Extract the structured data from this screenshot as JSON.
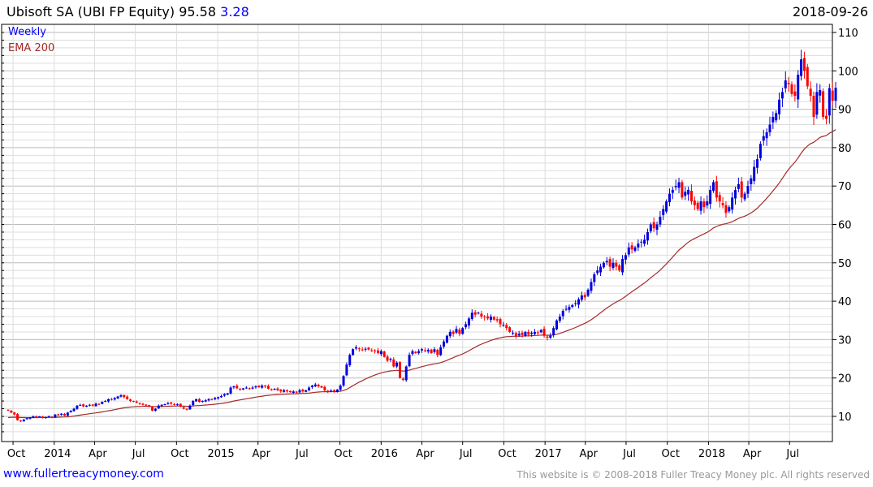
{
  "header": {
    "name": "Ubisoft SA (UBI FP Equity)",
    "price": "95.58",
    "change": "3.28",
    "date": "2018-09-26"
  },
  "legend": {
    "period": "Weekly",
    "ema": "EMA 200"
  },
  "footer": {
    "site": "www.fullertreacymoney.com",
    "copyright": "This website is © 2008-2018 Fuller Treacy Money plc. All rights reserved"
  },
  "colors": {
    "up": "#0000dd",
    "down": "#ff0000",
    "ema": "#a52a2a",
    "grid": "#dddddd",
    "gridMajor": "#bbbbbb"
  },
  "chart_data": {
    "type": "candlestick",
    "title": "Ubisoft SA (UBI FP Equity)",
    "frequency": "weekly",
    "start_date": "2013-09-20",
    "ylim": [
      4,
      112
    ],
    "y_ticks": [
      10,
      20,
      30,
      40,
      50,
      60,
      70,
      80,
      90,
      100,
      110
    ],
    "x_ticks": [
      {
        "label": "Oct",
        "date": "2013-10-01"
      },
      {
        "label": "2014",
        "date": "2014-01-01"
      },
      {
        "label": "Apr",
        "date": "2014-04-01"
      },
      {
        "label": "Jul",
        "date": "2014-07-01"
      },
      {
        "label": "Oct",
        "date": "2014-10-01"
      },
      {
        "label": "2015",
        "date": "2015-01-01"
      },
      {
        "label": "Apr",
        "date": "2015-04-01"
      },
      {
        "label": "Jul",
        "date": "2015-07-01"
      },
      {
        "label": "Oct",
        "date": "2015-10-01"
      },
      {
        "label": "2016",
        "date": "2016-01-01"
      },
      {
        "label": "Apr",
        "date": "2016-04-01"
      },
      {
        "label": "Jul",
        "date": "2016-07-01"
      },
      {
        "label": "Oct",
        "date": "2016-10-01"
      },
      {
        "label": "2017",
        "date": "2017-01-01"
      },
      {
        "label": "Apr",
        "date": "2017-04-01"
      },
      {
        "label": "Jul",
        "date": "2017-07-01"
      },
      {
        "label": "Oct",
        "date": "2017-10-01"
      },
      {
        "label": "2018",
        "date": "2018-01-01"
      },
      {
        "label": "Apr",
        "date": "2018-04-01"
      },
      {
        "label": "Jul",
        "date": "2018-07-01"
      }
    ],
    "closes": [
      11.5,
      11,
      10.5,
      9,
      8.7,
      9.2,
      9.5,
      9.7,
      10,
      9.8,
      10,
      9.6,
      9.8,
      10,
      9.7,
      10.5,
      10.3,
      10.7,
      10.2,
      11,
      11.5,
      12,
      12.8,
      13,
      12.6,
      12.8,
      13,
      12.8,
      13.3,
      13.2,
      13.8,
      14,
      14.5,
      14.3,
      14.8,
      15.2,
      15.5,
      15,
      14.5,
      14,
      13.8,
      13.6,
      13.3,
      13,
      12.8,
      12.5,
      11.5,
      12,
      12.8,
      13,
      13.2,
      13.5,
      13.3,
      13,
      13.2,
      12.5,
      12,
      11.8,
      12.8,
      14,
      14.5,
      13.8,
      14,
      14.2,
      14.5,
      14.3,
      14.8,
      15,
      15.3,
      15.8,
      16,
      17.5,
      17.8,
      17.3,
      17,
      17.3,
      17.5,
      17.3,
      17.5,
      17.8,
      17.6,
      18,
      17.8,
      17.2,
      17,
      17.2,
      16.8,
      16.5,
      16.8,
      16.5,
      16.3,
      16.5,
      16.2,
      16.8,
      16.5,
      16.8,
      17.5,
      18,
      18.3,
      17.8,
      17.5,
      16.8,
      16.5,
      16.7,
      16.5,
      17,
      18,
      20.5,
      23.5,
      26,
      27.5,
      28,
      27.5,
      27.3,
      27.6,
      27.4,
      27.2,
      27,
      26.5,
      27,
      25.5,
      24.5,
      25,
      23,
      24,
      20,
      19.5,
      23,
      26,
      27,
      26.5,
      27,
      27.5,
      27,
      27.3,
      26.5,
      27.5,
      26,
      28,
      29.5,
      31,
      32,
      31.5,
      32.8,
      31.5,
      33,
      34,
      35.5,
      37,
      36.5,
      37,
      36,
      35.8,
      35.5,
      36,
      35.2,
      35,
      34,
      33.8,
      33,
      32,
      31.8,
      31,
      31.5,
      31.2,
      32,
      31.3,
      31.8,
      32,
      31.8,
      32.5,
      31,
      30.5,
      31,
      33,
      35,
      36,
      37.5,
      38,
      38.5,
      39,
      39.5,
      40.5,
      41.5,
      41,
      43,
      45,
      47,
      48,
      49,
      50,
      50.5,
      49,
      50,
      49,
      48,
      51,
      52,
      54,
      53.5,
      54,
      55,
      55.5,
      56,
      58,
      60,
      59,
      60,
      62,
      64,
      66,
      68,
      69,
      70,
      71,
      67,
      68.5,
      69,
      66,
      65,
      64,
      66,
      64.5,
      66,
      69,
      71,
      67,
      66,
      65,
      63,
      64.5,
      67,
      69,
      70.5,
      67,
      68,
      70,
      72,
      75,
      77,
      81,
      83,
      84,
      86,
      88,
      89,
      92.5,
      94.5,
      97.5,
      96.5,
      94,
      93.5,
      99,
      103,
      100,
      96,
      93.5,
      88,
      94.5,
      95,
      88,
      87.5,
      95.5,
      92.2,
      95.58
    ],
    "ema_period": 200,
    "legend": [
      "Weekly",
      "EMA 200"
    ]
  }
}
